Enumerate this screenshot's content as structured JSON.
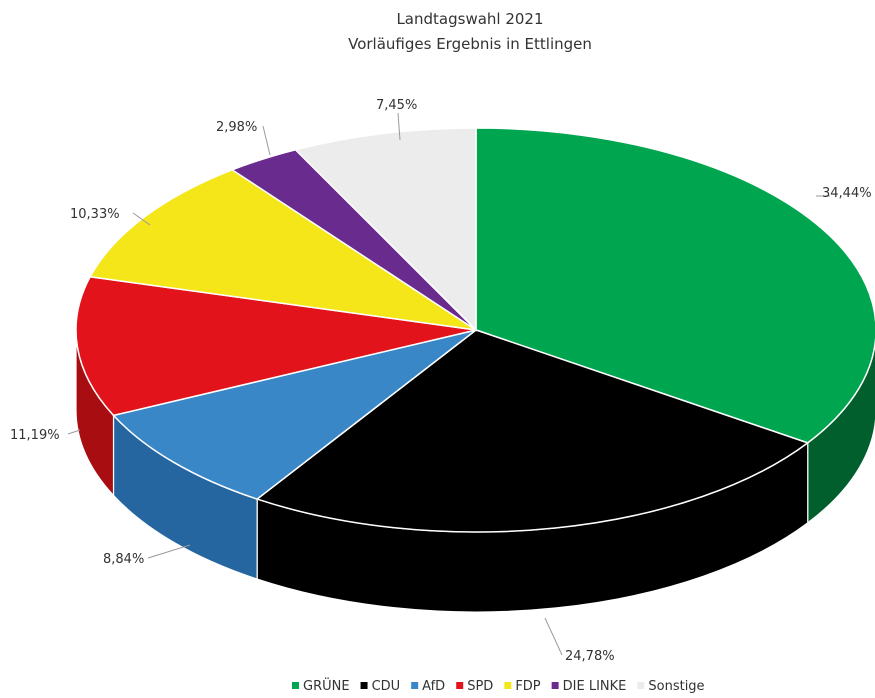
{
  "chart_data": {
    "type": "pie",
    "title": "Landtagswahl 2021",
    "subtitle": "Vorläufiges Ergebnis in Ettlingen",
    "slices": [
      {
        "name": "GRÜNE",
        "value": 34.44,
        "label": "34,44%",
        "color": "#00a54f",
        "side_color": "#005f2c"
      },
      {
        "name": "CDU",
        "value": 24.78,
        "label": "24,78%",
        "color": "#000000",
        "side_color": "#000000"
      },
      {
        "name": "AfD",
        "value": 8.84,
        "label": "8,84%",
        "color": "#3a87c8",
        "side_color": "#2565a0"
      },
      {
        "name": "SPD",
        "value": 11.19,
        "label": "11,19%",
        "color": "#e2131a",
        "side_color": "#a80d12"
      },
      {
        "name": "FDP",
        "value": 10.33,
        "label": "10,33%",
        "color": "#f5e61a",
        "side_color": "#b8ab10"
      },
      {
        "name": "DIE LINKE",
        "value": 2.98,
        "label": "2,98%",
        "color": "#6a2b8e",
        "side_color": "#4a1d64"
      },
      {
        "name": "Sonstige",
        "value": 7.45,
        "label": "7,45%",
        "color": "#ececec",
        "side_color": "#b9b9b9"
      }
    ],
    "legend": {
      "placement": "bottom-right",
      "items": [
        "GRÜNE",
        "CDU",
        "AfD",
        "SPD",
        "FDP",
        "DIE LINKE",
        "Sonstige"
      ]
    }
  }
}
